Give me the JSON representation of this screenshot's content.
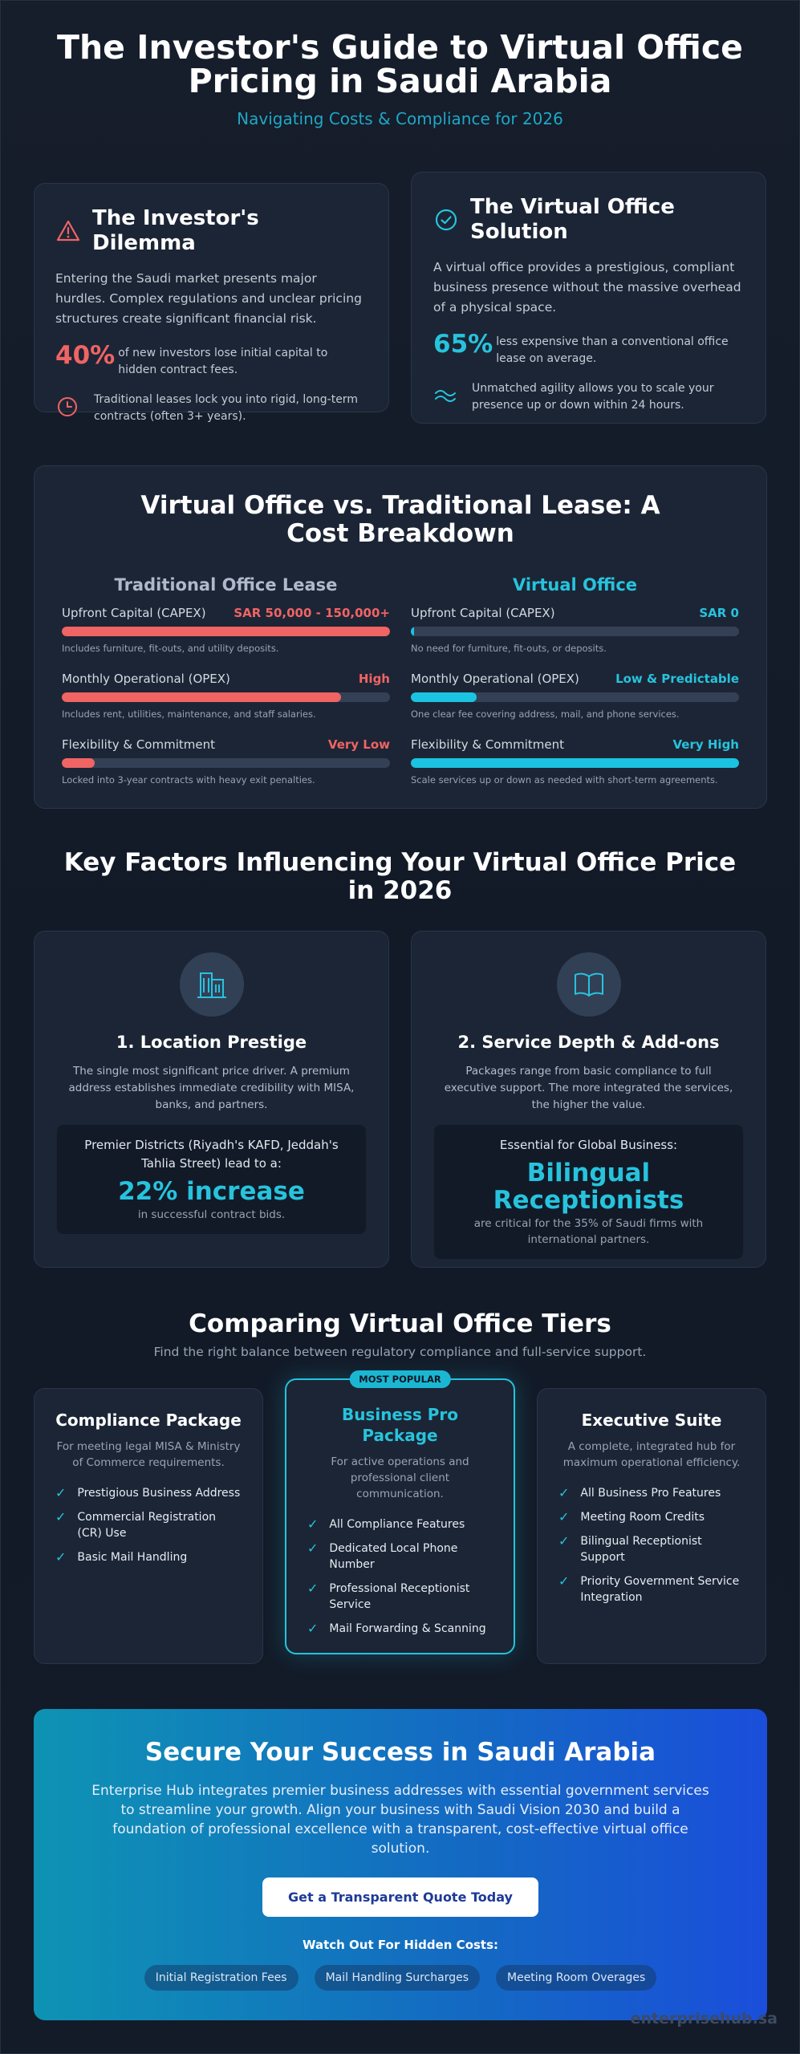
{
  "header": {
    "title": "The Investor's Guide to Virtual Office Pricing in Saudi Arabia",
    "subtitle": "Navigating Costs & Compliance for 2026"
  },
  "dilemma": {
    "title": "The Investor's Dilemma",
    "body": "Entering the Saudi market presents major hurdles. Complex regulations and unclear pricing structures create significant financial risk.",
    "stat_value": "40%",
    "stat_text": "of new investors lose initial capital to hidden contract fees.",
    "feature_text": "Traditional leases lock you into rigid, long-term contracts (often 3+ years)."
  },
  "solution": {
    "title": "The Virtual Office Solution",
    "body": "A virtual office provides a prestigious, compliant business presence without the massive overhead of a physical space.",
    "stat_value": "65%",
    "stat_text": "less expensive than a conventional office lease on average.",
    "feature_text": "Unmatched agility allows you to scale your presence up or down within 24 hours."
  },
  "cost": {
    "title": "Virtual Office vs. Traditional Lease: A Cost Breakdown",
    "traditional": {
      "title": "Traditional Office Lease",
      "metrics": [
        {
          "label": "Upfront Capital (CAPEX)",
          "value": "SAR 50,000 - 150,000+",
          "note": "Includes furniture, fit-outs, and utility deposits.",
          "fill": 1.0
        },
        {
          "label": "Monthly Operational (OPEX)",
          "value": "High",
          "note": "Includes rent, utilities, maintenance, and staff salaries.",
          "fill": 0.85
        },
        {
          "label": "Flexibility & Commitment",
          "value": "Very Low",
          "note": "Locked into 3-year contracts with heavy exit penalties.",
          "fill": 0.1
        }
      ]
    },
    "virtual": {
      "title": "Virtual Office",
      "metrics": [
        {
          "label": "Upfront Capital (CAPEX)",
          "value": "SAR 0",
          "note": "No need for furniture, fit-outs, or deposits.",
          "fill": 0.01
        },
        {
          "label": "Monthly Operational (OPEX)",
          "value": "Low & Predictable",
          "note": "One clear fee covering address, mail, and phone services.",
          "fill": 0.2
        },
        {
          "label": "Flexibility & Commitment",
          "value": "Very High",
          "note": "Scale services up or down as needed with short-term agreements.",
          "fill": 1.0
        }
      ]
    }
  },
  "factors": {
    "title": "Key Factors Influencing Your Virtual Office Price in 2026",
    "items": [
      {
        "title": "1. Location Prestige",
        "body": "The single most significant price driver. A premium address establishes immediate credibility with MISA, banks, and partners.",
        "box_label": "Premier Districts (Riyadh's KAFD, Jeddah's Tahlia Street) lead to a:",
        "box_big": "22% increase",
        "box_small": "in successful contract bids."
      },
      {
        "title": "2. Service Depth & Add-ons",
        "body": "Packages range from basic compliance to full executive support. The more integrated the services, the higher the value.",
        "box_label": "Essential for Global Business:",
        "box_big": "Bilingual Receptionists",
        "box_small": "are critical for the 35% of Saudi firms with international partners."
      }
    ]
  },
  "tiers": {
    "title": "Comparing Virtual Office Tiers",
    "subtitle": "Find the right balance between regulatory compliance and full-service support.",
    "items": [
      {
        "name": "Compliance Package",
        "desc": "For meeting legal MISA & Ministry of Commerce requirements.",
        "features": [
          "Prestigious Business Address",
          "Commercial Registration (CR) Use",
          "Basic Mail Handling"
        ]
      },
      {
        "badge": "MOST POPULAR",
        "name": "Business Pro Package",
        "desc": "For active operations and professional client communication.",
        "features": [
          "All Compliance Features",
          "Dedicated Local Phone Number",
          "Professional Receptionist Service",
          "Mail Forwarding & Scanning"
        ]
      },
      {
        "name": "Executive Suite",
        "desc": "A complete, integrated hub for maximum operational efficiency.",
        "features": [
          "All Business Pro Features",
          "Meeting Room Credits",
          "Bilingual Receptionist Support",
          "Priority Government Service Integration"
        ]
      }
    ]
  },
  "cta": {
    "title": "Secure Your Success in Saudi Arabia",
    "body": "Enterprise Hub integrates premier business addresses with essential government services to streamline your growth. Align your business with Saudi Vision 2030 and build a foundation of professional excellence with a transparent, cost-effective virtual office solution.",
    "button": "Get a Transparent Quote Today",
    "hidden_label": "Watch Out For Hidden Costs:",
    "pills": [
      "Initial Registration Fees",
      "Mail Handling Surcharges",
      "Meeting Room Overages"
    ]
  },
  "watermark": "enterprisehub.sa",
  "colors": {
    "accent": "#27c3dd",
    "warning": "#f06464",
    "background": "#161d2b"
  }
}
